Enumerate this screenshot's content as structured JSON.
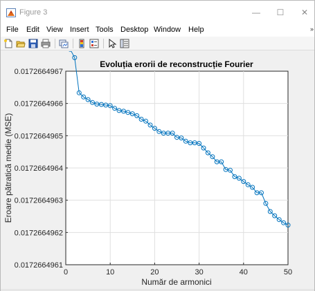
{
  "window": {
    "title": "Figure 3",
    "minimize_glyph": "—",
    "maximize_glyph": "☐",
    "close_glyph": "✕"
  },
  "menu": {
    "items": [
      "File",
      "Edit",
      "View",
      "Insert",
      "Tools",
      "Desktop",
      "Window",
      "Help"
    ],
    "overflow_glyph": "»"
  },
  "toolbar": {
    "buttons": [
      "new-figure-icon",
      "open-file-icon",
      "save-icon",
      "print-icon",
      "link-plot-icon",
      "colorbar-icon",
      "legend-icon",
      "edit-plot-arrow-icon",
      "property-inspector-icon"
    ]
  },
  "chart_data": {
    "type": "line",
    "title": "Evoluția erorii de reconstrucție Fourier",
    "xlabel": "Număr de armonici",
    "ylabel": "Eroare pătratică medie (MSE)",
    "xlim": [
      0,
      50
    ],
    "ylim": [
      0.0172664961,
      0.0172664967
    ],
    "xticks": [
      0,
      10,
      20,
      30,
      40,
      50
    ],
    "yticks": [
      "0.0172664961",
      "0.0172664962",
      "0.0172664963",
      "0.0172664964",
      "0.0172664965",
      "0.0172664966",
      "0.0172664967"
    ],
    "grid": true,
    "marker": "circle",
    "color": "#0072bd",
    "series": [
      {
        "x": [
          1,
          2,
          3,
          4,
          5,
          6,
          7,
          8,
          9,
          10,
          11,
          12,
          13,
          14,
          15,
          16,
          17,
          18,
          19,
          20,
          21,
          22,
          23,
          24,
          25,
          26,
          27,
          28,
          29,
          30,
          31,
          32,
          33,
          34,
          35,
          36,
          37,
          38,
          39,
          40,
          41,
          42,
          43,
          44,
          45,
          46,
          47,
          48,
          49,
          50
        ],
        "y_offset_e10": [
          6.68,
          6.42,
          5.33,
          5.2,
          5.12,
          5.03,
          4.98,
          4.97,
          4.95,
          4.93,
          4.85,
          4.78,
          4.76,
          4.72,
          4.68,
          4.62,
          4.51,
          4.45,
          4.33,
          4.23,
          4.13,
          4.08,
          4.08,
          4.08,
          3.95,
          3.93,
          3.83,
          3.78,
          3.78,
          3.76,
          3.62,
          3.47,
          3.35,
          3.19,
          3.19,
          2.95,
          2.93,
          2.73,
          2.68,
          2.58,
          2.48,
          2.4,
          2.23,
          2.23,
          1.9,
          1.65,
          1.52,
          1.4,
          1.3,
          1.23
        ]
      }
    ]
  }
}
